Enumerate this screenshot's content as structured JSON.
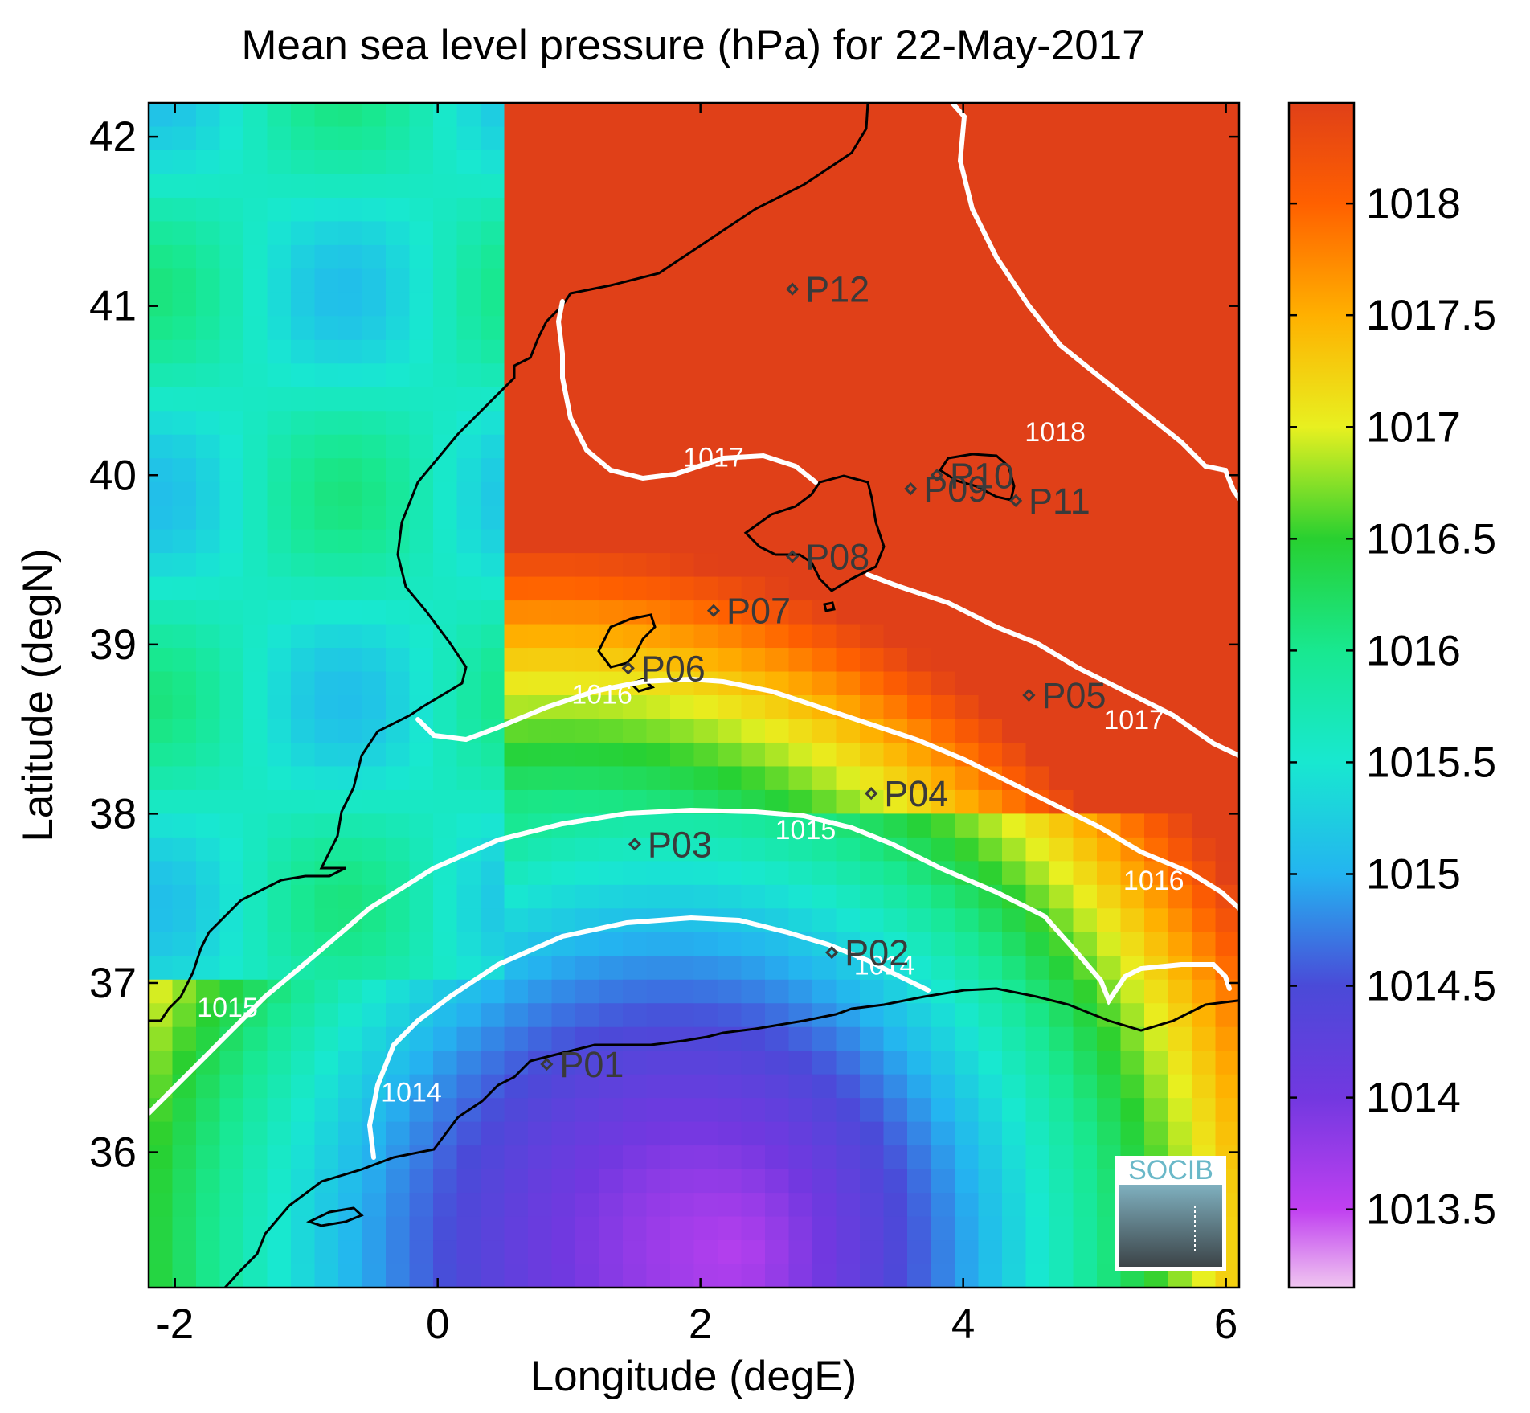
{
  "figure": {
    "title": "Mean sea level pressure (hPa) for 22-May-2017",
    "xlabel": "Longitude (degE)",
    "ylabel": "Latitude (degN)",
    "logo_text": "SOCIB"
  },
  "chart_data": {
    "type": "heatmap",
    "title": "Mean sea level pressure (hPa) for 22-May-2017",
    "xlabel": "Longitude (degE)",
    "ylabel": "Latitude (degN)",
    "xlim": [
      -2.2,
      6.1
    ],
    "ylim": [
      35.2,
      42.2
    ],
    "xticks": [
      "-2",
      "0",
      "2",
      "4",
      "6"
    ],
    "xtick_values": [
      -2,
      0,
      2,
      4,
      6
    ],
    "yticks": [
      "36",
      "37",
      "38",
      "39",
      "40",
      "41",
      "42"
    ],
    "ytick_values": [
      36,
      37,
      38,
      39,
      40,
      41,
      42
    ],
    "colorbar": {
      "min": 1013.15,
      "max": 1018.45,
      "ticks": [
        "1013.5",
        "1014",
        "1014.5",
        "1015",
        "1015.5",
        "1016",
        "1016.5",
        "1017",
        "1017.5",
        "1018"
      ],
      "tick_values": [
        1013.5,
        1014,
        1014.5,
        1015,
        1015.5,
        1016,
        1016.5,
        1017,
        1017.5,
        1018
      ],
      "colormap": [
        {
          "value": 1013.15,
          "color": "#f0c6f0"
        },
        {
          "value": 1013.5,
          "color": "#c040f0"
        },
        {
          "value": 1014.0,
          "color": "#7238e0"
        },
        {
          "value": 1014.5,
          "color": "#4a4ad8"
        },
        {
          "value": 1015.0,
          "color": "#24b4f0"
        },
        {
          "value": 1015.5,
          "color": "#18e8d0"
        },
        {
          "value": 1016.0,
          "color": "#18e890"
        },
        {
          "value": 1016.5,
          "color": "#28d030"
        },
        {
          "value": 1017.0,
          "color": "#e8f020"
        },
        {
          "value": 1017.5,
          "color": "#ffb000"
        },
        {
          "value": 1018.0,
          "color": "#ff6000"
        },
        {
          "value": 1018.45,
          "color": "#e04018"
        }
      ]
    },
    "contour_labels": [
      {
        "text": "1018",
        "lon": 4.7,
        "lat": 40.2
      },
      {
        "text": "1017",
        "lon": 2.1,
        "lat": 40.05
      },
      {
        "text": "1017",
        "lon": 5.3,
        "lat": 38.5
      },
      {
        "text": "1016",
        "lon": 1.25,
        "lat": 38.65
      },
      {
        "text": "1016",
        "lon": 5.45,
        "lat": 37.55
      },
      {
        "text": "1015",
        "lon": 2.8,
        "lat": 37.85
      },
      {
        "text": "1015",
        "lon": -1.6,
        "lat": 36.8
      },
      {
        "text": "1014",
        "lon": -0.2,
        "lat": 36.3
      },
      {
        "text": "1014",
        "lon": 3.4,
        "lat": 37.05
      }
    ],
    "stations": [
      {
        "name": "P01",
        "lon": 0.83,
        "lat": 36.52
      },
      {
        "name": "P02",
        "lon": 3.0,
        "lat": 37.18
      },
      {
        "name": "P03",
        "lon": 1.5,
        "lat": 37.82
      },
      {
        "name": "P04",
        "lon": 3.3,
        "lat": 38.12
      },
      {
        "name": "P05",
        "lon": 4.5,
        "lat": 38.7
      },
      {
        "name": "P06",
        "lon": 1.45,
        "lat": 38.86
      },
      {
        "name": "P07",
        "lon": 2.1,
        "lat": 39.2
      },
      {
        "name": "P08",
        "lon": 2.7,
        "lat": 39.52
      },
      {
        "name": "P09",
        "lon": 3.6,
        "lat": 39.92
      },
      {
        "name": "P10",
        "lon": 3.8,
        "lat": 40.0
      },
      {
        "name": "P11",
        "lon": 4.4,
        "lat": 39.85
      },
      {
        "name": "P12",
        "lon": 2.7,
        "lat": 41.1
      }
    ]
  }
}
